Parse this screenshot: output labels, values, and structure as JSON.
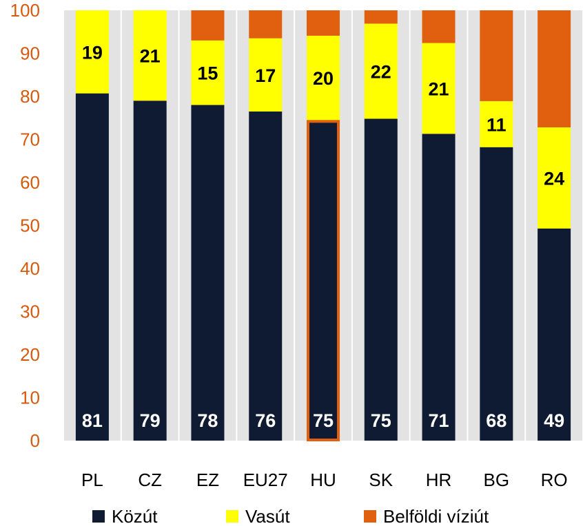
{
  "chart_data": {
    "type": "bar",
    "stacked": true,
    "categories": [
      "PL",
      "CZ",
      "EZ",
      "EU27",
      "HU",
      "SK",
      "HR",
      "BG",
      "RO"
    ],
    "series": [
      {
        "name": "Közút",
        "color": "#0F1A33",
        "values": [
          80.7,
          79.0,
          78.0,
          76.5,
          74.5,
          74.8,
          71.3,
          68.2,
          49.3
        ],
        "labels": [
          "81",
          "79",
          "78",
          "76",
          "75",
          "75",
          "71",
          "68",
          "49"
        ]
      },
      {
        "name": "Vasút",
        "color": "#FFFF00",
        "values": [
          19.3,
          21.0,
          15.0,
          17.0,
          19.6,
          22.1,
          21.1,
          10.7,
          23.5
        ],
        "labels": [
          "19",
          "21",
          "15",
          "17",
          "20",
          "22",
          "21",
          "11",
          "24"
        ]
      },
      {
        "name": "Belföldi víziút",
        "color": "#E06010",
        "values": [
          0.0,
          0.0,
          7.0,
          6.5,
          5.9,
          3.1,
          7.6,
          21.1,
          27.2
        ],
        "labels": [
          "",
          "",
          "",
          "",
          "",
          "",
          "",
          "",
          ""
        ]
      }
    ],
    "highlight": "HU",
    "highlight_color": "#E06010",
    "ylim": [
      0,
      100
    ],
    "yticks": [
      "0",
      "10",
      "20",
      "30",
      "40",
      "50",
      "60",
      "70",
      "80",
      "90",
      "100"
    ],
    "column_background": "#E3E3E3",
    "legend": "bottom"
  }
}
